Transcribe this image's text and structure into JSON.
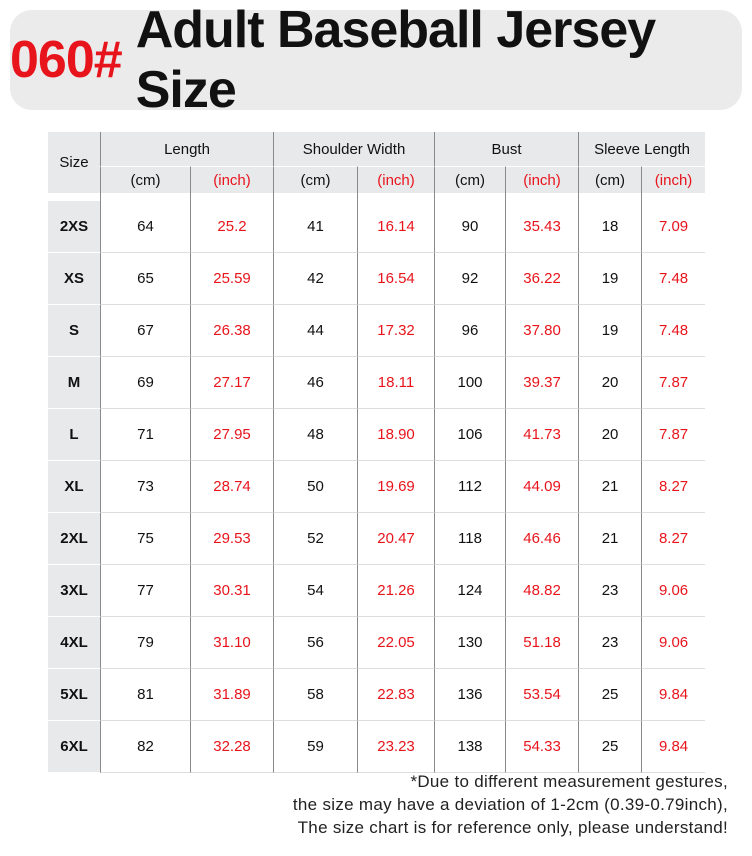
{
  "title": {
    "code": "060#",
    "text": "Adult Baseball Jersey Size"
  },
  "table": {
    "size_header": "Size",
    "groups": [
      "Length",
      "Shoulder Width",
      "Bust",
      "Sleeve Length"
    ],
    "units": [
      "(cm)",
      "(inch)",
      "(cm)",
      "(inch)",
      "(cm)",
      "(inch)",
      "(cm)",
      "(inch)"
    ],
    "rows": [
      {
        "size": "2XS",
        "values": [
          "64",
          "25.2",
          "41",
          "16.14",
          "90",
          "35.43",
          "18",
          "7.09"
        ]
      },
      {
        "size": "XS",
        "values": [
          "65",
          "25.59",
          "42",
          "16.54",
          "92",
          "36.22",
          "19",
          "7.48"
        ]
      },
      {
        "size": "S",
        "values": [
          "67",
          "26.38",
          "44",
          "17.32",
          "96",
          "37.80",
          "19",
          "7.48"
        ]
      },
      {
        "size": "M",
        "values": [
          "69",
          "27.17",
          "46",
          "18.11",
          "100",
          "39.37",
          "20",
          "7.87"
        ]
      },
      {
        "size": "L",
        "values": [
          "71",
          "27.95",
          "48",
          "18.90",
          "106",
          "41.73",
          "20",
          "7.87"
        ]
      },
      {
        "size": "XL",
        "values": [
          "73",
          "28.74",
          "50",
          "19.69",
          "112",
          "44.09",
          "21",
          "8.27"
        ]
      },
      {
        "size": "2XL",
        "values": [
          "75",
          "29.53",
          "52",
          "20.47",
          "118",
          "46.46",
          "21",
          "8.27"
        ]
      },
      {
        "size": "3XL",
        "values": [
          "77",
          "30.31",
          "54",
          "21.26",
          "124",
          "48.82",
          "23",
          "9.06"
        ]
      },
      {
        "size": "4XL",
        "values": [
          "79",
          "31.10",
          "56",
          "22.05",
          "130",
          "51.18",
          "23",
          "9.06"
        ]
      },
      {
        "size": "5XL",
        "values": [
          "81",
          "31.89",
          "58",
          "22.83",
          "136",
          "53.54",
          "25",
          "9.84"
        ]
      },
      {
        "size": "6XL",
        "values": [
          "82",
          "32.28",
          "59",
          "23.23",
          "138",
          "54.33",
          "25",
          "9.84"
        ]
      }
    ]
  },
  "note": {
    "line1": "*Due to different measurement gestures,",
    "line2": "the size may have a deviation of 1-2cm (0.39-0.79inch),",
    "line3": "The size chart is for reference only, please understand!"
  },
  "colors": {
    "accent_red": "#e8141c",
    "header_gray": "#e8e9eb"
  }
}
